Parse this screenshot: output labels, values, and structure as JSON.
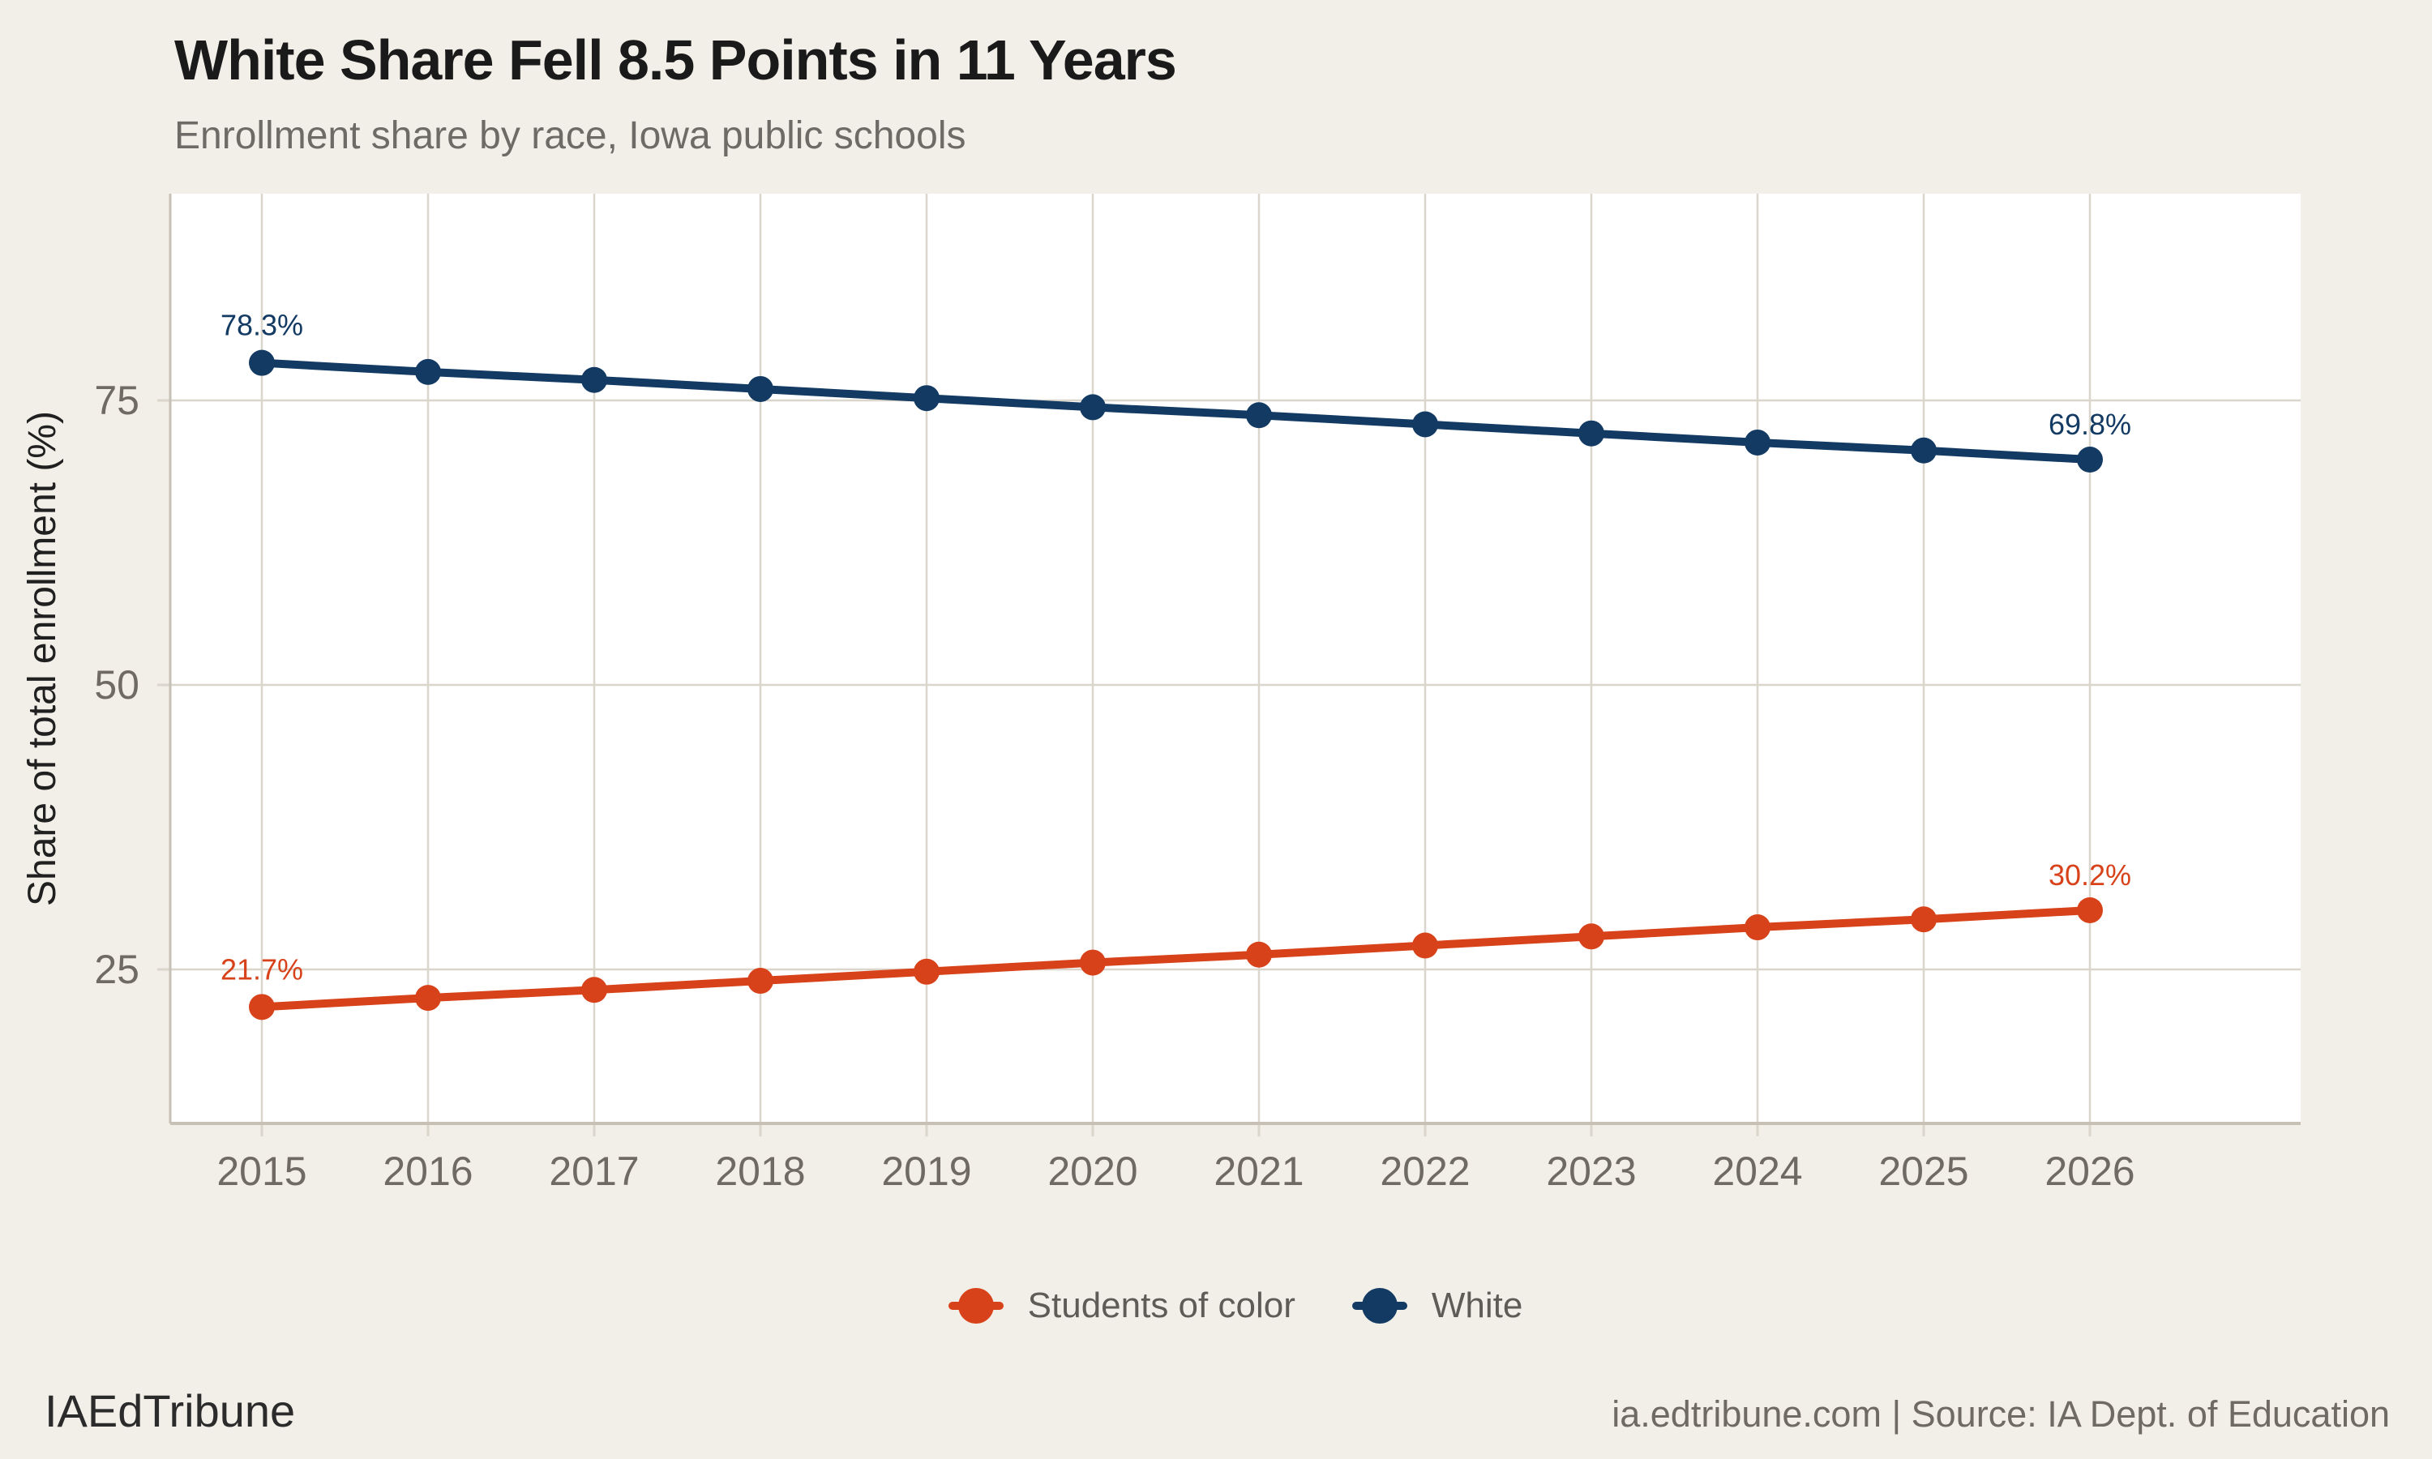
{
  "header": {
    "title": "White Share Fell 8.5 Points in 11 Years",
    "subtitle": "Enrollment share by race, Iowa public schools"
  },
  "footer": {
    "brand": "IAEdTribune",
    "source": "ia.edtribune.com | Source: IA Dept. of Education"
  },
  "legend": [
    {
      "label": "Students of color",
      "color": "#d8421a"
    },
    {
      "label": "White",
      "color": "#123a63"
    }
  ],
  "colors": {
    "background": "#f2efe8",
    "panel": "#ffffff",
    "grid": "#dbd6cc",
    "axis": "#c6c0b5",
    "tick_label": "#6f6b64",
    "axis_title": "#202020",
    "orange": "#d8421a",
    "navy": "#123a63"
  },
  "chart_data": {
    "type": "line",
    "title": "White Share Fell 8.5 Points in 11 Years",
    "subtitle": "Enrollment share by race, Iowa public schools",
    "x": [
      2015,
      2016,
      2017,
      2018,
      2019,
      2020,
      2021,
      2022,
      2023,
      2024,
      2025,
      2026
    ],
    "series": [
      {
        "name": "Students of color",
        "color": "#d8421a",
        "values": [
          21.7,
          22.5,
          23.2,
          24.0,
          24.8,
          25.6,
          26.3,
          27.1,
          27.9,
          28.7,
          29.4,
          30.2
        ],
        "point_labels": {
          "start": "21.7%",
          "end": "30.2%"
        }
      },
      {
        "name": "White",
        "color": "#123a63",
        "values": [
          78.3,
          77.5,
          76.8,
          76.0,
          75.2,
          74.4,
          73.7,
          72.9,
          72.1,
          71.3,
          70.6,
          69.8
        ],
        "point_labels": {
          "start": "78.3%",
          "end": "69.8%"
        }
      }
    ],
    "xlabel": "",
    "ylabel": "Share of total enrollment (%)",
    "yticks": [
      25,
      50,
      75
    ],
    "ylim": [
      11,
      93
    ],
    "grid": true,
    "legend_position": "bottom"
  }
}
